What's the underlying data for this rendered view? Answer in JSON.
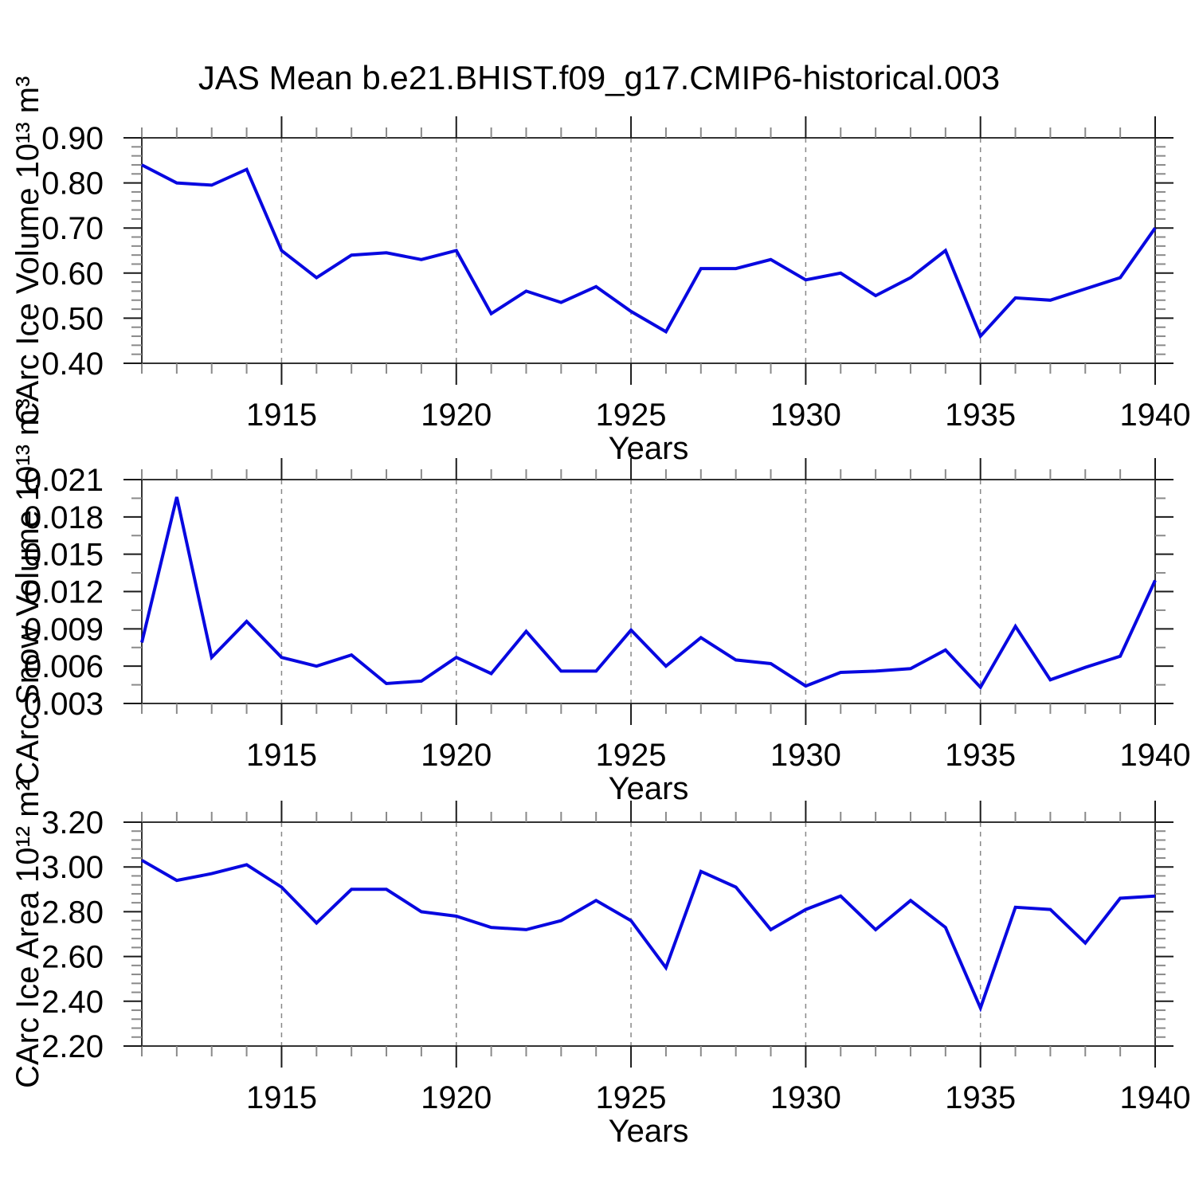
{
  "title": "JAS Mean b.e21.BHIST.f09_g17.CMIP6-historical.003",
  "colors": {
    "line": "#0808e0",
    "frame": "#333333",
    "grid": "#888888",
    "major_tick": "#1a1a1a",
    "minor_tick": "#8a8a8a",
    "text": "#000000",
    "background": "#ffffff"
  },
  "chart_data": [
    {
      "id": "ice-volume",
      "type": "line",
      "ylabel": "CArc Ice Volume 10¹³ m³",
      "xlabel": "Years",
      "x": [
        1911,
        1912,
        1913,
        1914,
        1915,
        1916,
        1917,
        1918,
        1919,
        1920,
        1921,
        1922,
        1923,
        1924,
        1925,
        1926,
        1927,
        1928,
        1929,
        1930,
        1931,
        1932,
        1933,
        1934,
        1935,
        1936,
        1937,
        1938,
        1939,
        1940
      ],
      "values": [
        0.84,
        0.8,
        0.795,
        0.83,
        0.65,
        0.59,
        0.64,
        0.645,
        0.63,
        0.65,
        0.51,
        0.56,
        0.535,
        0.57,
        0.515,
        0.47,
        0.61,
        0.61,
        0.63,
        0.585,
        0.6,
        0.55,
        0.59,
        0.65,
        0.46,
        0.545,
        0.54,
        0.565,
        0.59,
        0.7
      ],
      "xlim": [
        1911,
        1940
      ],
      "ylim": [
        0.4,
        0.9
      ],
      "xticks": [
        1915,
        1920,
        1925,
        1930,
        1935,
        1940
      ],
      "xtick_labels": [
        "1915",
        "1920",
        "1925",
        "1930",
        "1935",
        "1940"
      ],
      "x_minor_step": 1,
      "yticks": [
        0.4,
        0.5,
        0.6,
        0.7,
        0.8,
        0.9
      ],
      "ytick_labels": [
        "0.40",
        "0.50",
        "0.60",
        "0.70",
        "0.80",
        "0.90"
      ],
      "y_minor_step": 0.02,
      "grid_x": [
        1915,
        1920,
        1925,
        1930,
        1935
      ],
      "grid_style": "vertical dashed",
      "legend": "none"
    },
    {
      "id": "snow-volume",
      "type": "line",
      "ylabel": "CArc Snow Volume 10¹³ m³",
      "xlabel": "Years",
      "x": [
        1911,
        1912,
        1913,
        1914,
        1915,
        1916,
        1917,
        1918,
        1919,
        1920,
        1921,
        1922,
        1923,
        1924,
        1925,
        1926,
        1927,
        1928,
        1929,
        1930,
        1931,
        1932,
        1933,
        1934,
        1935,
        1936,
        1937,
        1938,
        1939,
        1940
      ],
      "values": [
        0.0079,
        0.0196,
        0.0067,
        0.0096,
        0.0067,
        0.006,
        0.0069,
        0.0046,
        0.0048,
        0.0067,
        0.0054,
        0.0088,
        0.0056,
        0.0056,
        0.0089,
        0.006,
        0.0083,
        0.0065,
        0.0062,
        0.0044,
        0.0055,
        0.0056,
        0.0058,
        0.0073,
        0.0043,
        0.0092,
        0.0049,
        0.0059,
        0.0068,
        0.0129
      ],
      "xlim": [
        1911,
        1940
      ],
      "ylim": [
        0.003,
        0.021
      ],
      "xticks": [
        1915,
        1920,
        1925,
        1930,
        1935,
        1940
      ],
      "xtick_labels": [
        "1915",
        "1920",
        "1925",
        "1930",
        "1935",
        "1940"
      ],
      "x_minor_step": 1,
      "yticks": [
        0.003,
        0.006,
        0.009,
        0.012,
        0.015,
        0.018,
        0.021
      ],
      "ytick_labels": [
        "0.003",
        "0.006",
        "0.009",
        "0.012",
        "0.015",
        "0.018",
        "0.021"
      ],
      "y_minor_step": 0.0015,
      "grid_x": [
        1915,
        1920,
        1925,
        1930,
        1935
      ],
      "grid_style": "vertical dashed",
      "legend": "none"
    },
    {
      "id": "ice-area",
      "type": "line",
      "ylabel": "CArc Ice Area 10¹² m²",
      "xlabel": "Years",
      "x": [
        1911,
        1912,
        1913,
        1914,
        1915,
        1916,
        1917,
        1918,
        1919,
        1920,
        1921,
        1922,
        1923,
        1924,
        1925,
        1926,
        1927,
        1928,
        1929,
        1930,
        1931,
        1932,
        1933,
        1934,
        1935,
        1936,
        1937,
        1938,
        1939,
        1940
      ],
      "values": [
        3.03,
        2.94,
        2.97,
        3.01,
        2.91,
        2.75,
        2.9,
        2.9,
        2.8,
        2.78,
        2.73,
        2.72,
        2.76,
        2.85,
        2.76,
        2.55,
        2.98,
        2.91,
        2.72,
        2.81,
        2.87,
        2.72,
        2.85,
        2.73,
        2.37,
        2.82,
        2.81,
        2.66,
        2.86,
        2.87
      ],
      "xlim": [
        1911,
        1940
      ],
      "ylim": [
        2.2,
        3.2
      ],
      "xticks": [
        1915,
        1920,
        1925,
        1930,
        1935,
        1940
      ],
      "xtick_labels": [
        "1915",
        "1920",
        "1925",
        "1930",
        "1935",
        "1940"
      ],
      "x_minor_step": 1,
      "yticks": [
        2.2,
        2.4,
        2.6,
        2.8,
        3.0,
        3.2
      ],
      "ytick_labels": [
        "2.20",
        "2.40",
        "2.60",
        "2.80",
        "3.00",
        "3.20"
      ],
      "y_minor_step": 0.04,
      "grid_x": [
        1915,
        1920,
        1925,
        1930,
        1935
      ],
      "grid_style": "vertical dashed",
      "legend": "none"
    }
  ]
}
